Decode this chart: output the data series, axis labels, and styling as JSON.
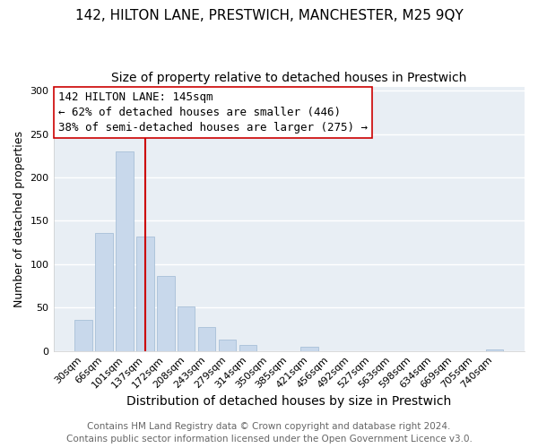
{
  "title1": "142, HILTON LANE, PRESTWICH, MANCHESTER, M25 9QY",
  "title2": "Size of property relative to detached houses in Prestwich",
  "xlabel": "Distribution of detached houses by size in Prestwich",
  "ylabel": "Number of detached properties",
  "bar_labels": [
    "30sqm",
    "66sqm",
    "101sqm",
    "137sqm",
    "172sqm",
    "208sqm",
    "243sqm",
    "279sqm",
    "314sqm",
    "350sqm",
    "385sqm",
    "421sqm",
    "456sqm",
    "492sqm",
    "527sqm",
    "563sqm",
    "598sqm",
    "634sqm",
    "669sqm",
    "705sqm",
    "740sqm"
  ],
  "bar_values": [
    36,
    136,
    230,
    132,
    86,
    51,
    27,
    13,
    7,
    0,
    0,
    5,
    0,
    0,
    0,
    0,
    0,
    0,
    0,
    0,
    2
  ],
  "bar_color": "#c8d8eb",
  "bar_edge_color": "#a8c0d8",
  "vline_x_index": 3,
  "vline_color": "#cc0000",
  "annotation_line1": "142 HILTON LANE: 145sqm",
  "annotation_line2": "← 62% of detached houses are smaller (446)",
  "annotation_line3": "38% of semi-detached houses are larger (275) →",
  "annotation_box_color": "#ffffff",
  "annotation_box_edge_color": "#cc0000",
  "ylim": [
    0,
    305
  ],
  "yticks": [
    0,
    50,
    100,
    150,
    200,
    250,
    300
  ],
  "footer_text": "Contains HM Land Registry data © Crown copyright and database right 2024.\nContains public sector information licensed under the Open Government Licence v3.0.",
  "background_color": "#ffffff",
  "plot_bg_color": "#e8eef4",
  "grid_color": "#ffffff",
  "title1_fontsize": 11,
  "title2_fontsize": 10,
  "xlabel_fontsize": 10,
  "ylabel_fontsize": 9,
  "annotation_fontsize": 9,
  "footer_fontsize": 7.5,
  "tick_fontsize": 8
}
